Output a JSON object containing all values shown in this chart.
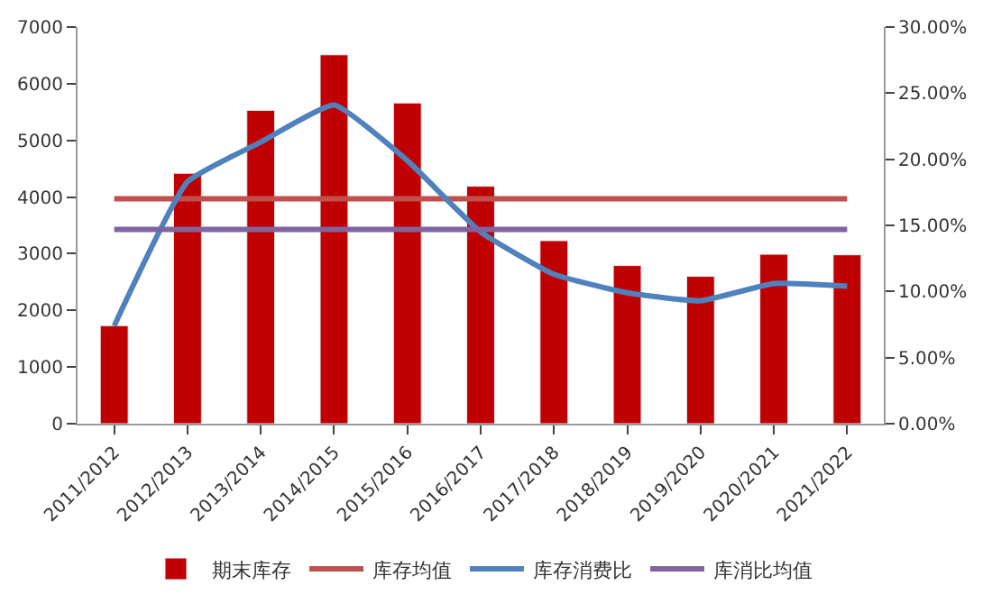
{
  "chart_data": {
    "type": "bar",
    "categories": [
      "2011/2012",
      "2012/2013",
      "2013/2014",
      "2014/2015",
      "2015/2016",
      "2016/2017",
      "2017/2018",
      "2018/2019",
      "2019/2020",
      "2020/2021",
      "2021/2022"
    ],
    "series": [
      {
        "name": "期末库存",
        "color": "#c00000",
        "values": [
          1730,
          4420,
          5530,
          6510,
          5660,
          4190,
          3230,
          2790,
          2600,
          2990,
          2980
        ]
      },
      {
        "name": "库存均值",
        "color": "#c0504d",
        "type": "line",
        "values": [
          3970,
          3970,
          3970,
          3970,
          3970,
          3970,
          3970,
          3970,
          3970,
          3970,
          3970
        ]
      },
      {
        "name": "库存消费比",
        "color": "#4f81bd",
        "type": "line",
        "axis": "y2",
        "values": [
          7.4,
          18.3,
          21.3,
          24.1,
          19.9,
          14.5,
          11.3,
          9.9,
          9.3,
          10.6,
          10.4
        ]
      },
      {
        "name": "库消比均值",
        "color": "#8064a2",
        "type": "line",
        "axis": "y2",
        "values": [
          14.7,
          14.7,
          14.7,
          14.7,
          14.7,
          14.7,
          14.7,
          14.7,
          14.7,
          14.7,
          14.7
        ]
      }
    ],
    "ylim": [
      0,
      7000
    ],
    "yticks": [
      0,
      1000,
      2000,
      3000,
      4000,
      5000,
      6000,
      7000
    ],
    "y2lim": [
      0,
      30
    ],
    "y2ticks": [
      {
        "value": 0,
        "label": "0.00%"
      },
      {
        "value": 5,
        "label": "5.00%"
      },
      {
        "value": 10,
        "label": "10.00%"
      },
      {
        "value": 15,
        "label": "15.00%"
      },
      {
        "value": 20,
        "label": "20.00%"
      },
      {
        "value": 25,
        "label": "25.00%"
      },
      {
        "value": 30,
        "label": "30.00%"
      }
    ],
    "legend": "bottom",
    "marker": "none",
    "line_style": "solid"
  }
}
